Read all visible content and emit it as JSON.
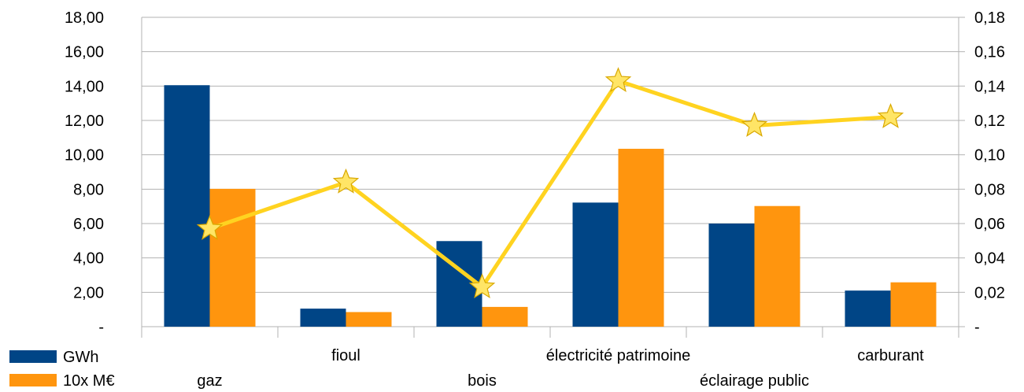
{
  "chart_data": {
    "type": "bar",
    "categories": [
      "gaz",
      "fioul",
      "bois",
      "électricité patrimoine",
      "éclairage public",
      "carburant"
    ],
    "series": [
      {
        "name": "GWh",
        "kind": "bar",
        "axis": "left",
        "color": "#004586",
        "values": [
          14.05,
          1.05,
          4.98,
          7.22,
          6.0,
          2.1
        ]
      },
      {
        "name": "10x M€",
        "kind": "bar",
        "axis": "left",
        "color": "#ff950e",
        "values": [
          8.02,
          0.85,
          1.15,
          10.35,
          7.02,
          2.58
        ]
      },
      {
        "name": "",
        "kind": "line",
        "axis": "right",
        "color": "#ffd320",
        "marker": "star",
        "values": [
          0.057,
          0.084,
          0.023,
          0.143,
          0.117,
          0.122
        ]
      }
    ],
    "y_left": {
      "range": [
        0,
        18
      ],
      "ticks": [
        "-",
        "2,00",
        "4,00",
        "6,00",
        "8,00",
        "10,00",
        "12,00",
        "14,00",
        "16,00",
        "18,00"
      ]
    },
    "y_right": {
      "range": [
        0,
        0.18
      ],
      "ticks": [
        "-",
        "0,02",
        "0,04",
        "0,06",
        "0,08",
        "0,10",
        "0,12",
        "0,14",
        "0,16",
        "0,18"
      ]
    },
    "grid": true,
    "legend": {
      "placement": "bottom-left",
      "entries": [
        "GWh",
        "10x M€"
      ]
    }
  }
}
